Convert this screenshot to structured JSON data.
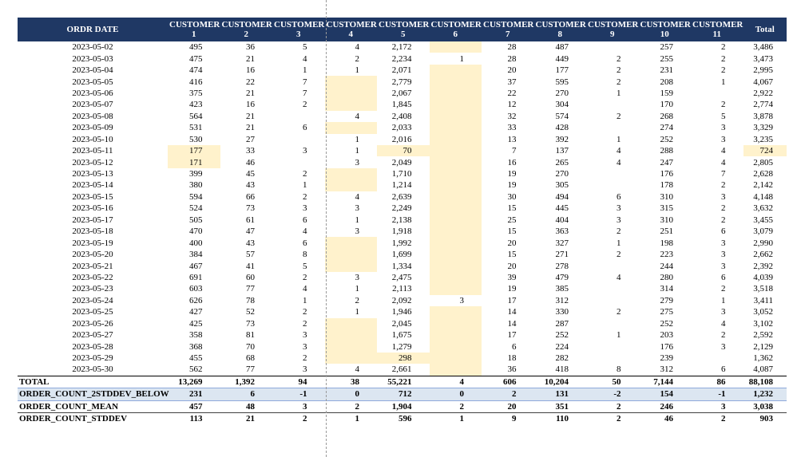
{
  "table": {
    "columns": [
      "ORDR DATE",
      "CUSTOMER 1",
      "CUSTOMER 2",
      "CUSTOMER 3",
      "CUSTOMER 4",
      "CUSTOMER 5",
      "CUSTOMER 6",
      "CUSTOMER 7",
      "CUSTOMER 8",
      "CUSTOMER 9",
      "CUSTOMER 10",
      "CUSTOMER 11",
      "Total"
    ],
    "rows": [
      [
        "2023-05-02",
        "495",
        "36",
        "5",
        "4",
        "2,172",
        null,
        "28",
        "487",
        null,
        "257",
        "2",
        "3,486"
      ],
      [
        "2023-05-03",
        "475",
        "21",
        "4",
        "2",
        "2,234",
        "1",
        "28",
        "449",
        "2",
        "255",
        "2",
        "3,473"
      ],
      [
        "2023-05-04",
        "474",
        "16",
        "1",
        "1",
        "2,071",
        null,
        "20",
        "177",
        "2",
        "231",
        "2",
        "2,995"
      ],
      [
        "2023-05-05",
        "416",
        "22",
        "7",
        null,
        "2,779",
        null,
        "37",
        "595",
        "2",
        "208",
        "1",
        "4,067"
      ],
      [
        "2023-05-06",
        "375",
        "21",
        "7",
        null,
        "2,067",
        null,
        "22",
        "270",
        "1",
        "159",
        null,
        "2,922"
      ],
      [
        "2023-05-07",
        "423",
        "16",
        "2",
        null,
        "1,845",
        null,
        "12",
        "304",
        null,
        "170",
        "2",
        "2,774"
      ],
      [
        "2023-05-08",
        "564",
        "21",
        null,
        "4",
        "2,408",
        null,
        "32",
        "574",
        "2",
        "268",
        "5",
        "3,878"
      ],
      [
        "2023-05-09",
        "531",
        "21",
        "6",
        null,
        "2,033",
        null,
        "33",
        "428",
        null,
        "274",
        "3",
        "3,329"
      ],
      [
        "2023-05-10",
        "530",
        "27",
        null,
        "1",
        "2,016",
        null,
        "13",
        "392",
        "1",
        "252",
        "3",
        "3,235"
      ],
      [
        "2023-05-11",
        "177",
        "33",
        "3",
        "1",
        "70",
        null,
        "7",
        "137",
        "4",
        "288",
        "4",
        "724"
      ],
      [
        "2023-05-12",
        "171",
        "46",
        null,
        "3",
        "2,049",
        null,
        "16",
        "265",
        "4",
        "247",
        "4",
        "2,805"
      ],
      [
        "2023-05-13",
        "399",
        "45",
        "2",
        null,
        "1,710",
        null,
        "19",
        "270",
        null,
        "176",
        "7",
        "2,628"
      ],
      [
        "2023-05-14",
        "380",
        "43",
        "1",
        null,
        "1,214",
        null,
        "19",
        "305",
        null,
        "178",
        "2",
        "2,142"
      ],
      [
        "2023-05-15",
        "594",
        "66",
        "2",
        "4",
        "2,639",
        null,
        "30",
        "494",
        "6",
        "310",
        "3",
        "4,148"
      ],
      [
        "2023-05-16",
        "524",
        "73",
        "3",
        "3",
        "2,249",
        null,
        "15",
        "445",
        "3",
        "315",
        "2",
        "3,632"
      ],
      [
        "2023-05-17",
        "505",
        "61",
        "6",
        "1",
        "2,138",
        null,
        "25",
        "404",
        "3",
        "310",
        "2",
        "3,455"
      ],
      [
        "2023-05-18",
        "470",
        "47",
        "4",
        "3",
        "1,918",
        null,
        "15",
        "363",
        "2",
        "251",
        "6",
        "3,079"
      ],
      [
        "2023-05-19",
        "400",
        "43",
        "6",
        null,
        "1,992",
        null,
        "20",
        "327",
        "1",
        "198",
        "3",
        "2,990"
      ],
      [
        "2023-05-20",
        "384",
        "57",
        "8",
        null,
        "1,699",
        null,
        "15",
        "271",
        "2",
        "223",
        "3",
        "2,662"
      ],
      [
        "2023-05-21",
        "467",
        "41",
        "5",
        null,
        "1,334",
        null,
        "20",
        "278",
        null,
        "244",
        "3",
        "2,392"
      ],
      [
        "2023-05-22",
        "691",
        "60",
        "2",
        "3",
        "2,475",
        null,
        "39",
        "479",
        "4",
        "280",
        "6",
        "4,039"
      ],
      [
        "2023-05-23",
        "603",
        "77",
        "4",
        "1",
        "2,113",
        null,
        "19",
        "385",
        null,
        "314",
        "2",
        "3,518"
      ],
      [
        "2023-05-24",
        "626",
        "78",
        "1",
        "2",
        "2,092",
        "3",
        "17",
        "312",
        null,
        "279",
        "1",
        "3,411"
      ],
      [
        "2023-05-25",
        "427",
        "52",
        "2",
        "1",
        "1,946",
        null,
        "14",
        "330",
        "2",
        "275",
        "3",
        "3,052"
      ],
      [
        "2023-05-26",
        "425",
        "73",
        "2",
        null,
        "2,045",
        null,
        "14",
        "287",
        null,
        "252",
        "4",
        "3,102"
      ],
      [
        "2023-05-27",
        "358",
        "81",
        "3",
        null,
        "1,675",
        null,
        "17",
        "252",
        "1",
        "203",
        "2",
        "2,592"
      ],
      [
        "2023-05-28",
        "368",
        "70",
        "3",
        null,
        "1,279",
        null,
        "6",
        "224",
        null,
        "176",
        "3",
        "2,129"
      ],
      [
        "2023-05-29",
        "455",
        "68",
        "2",
        null,
        "298",
        null,
        "18",
        "282",
        null,
        "239",
        null,
        "1,362"
      ],
      [
        "2023-05-30",
        "562",
        "77",
        "3",
        "4",
        "2,661",
        null,
        "36",
        "418",
        "8",
        "312",
        "6",
        "4,087"
      ]
    ],
    "summary_rows": [
      [
        "TOTAL",
        "13,269",
        "1,392",
        "94",
        "38",
        "55,221",
        "4",
        "606",
        "10,204",
        "50",
        "7,144",
        "86",
        "88,108"
      ],
      [
        "ORDER_COUNT_2STDDEV_BELOW",
        "231",
        "6",
        "-1",
        "0",
        "712",
        "0",
        "2",
        "131",
        "-2",
        "154",
        "-1",
        "1,232"
      ],
      [
        "ORDER_COUNT_MEAN",
        "457",
        "48",
        "3",
        "2",
        "1,904",
        "2",
        "20",
        "351",
        "2",
        "246",
        "3",
        "3,038"
      ],
      [
        "ORDER_COUNT_STDDEV",
        "113",
        "21",
        "2",
        "1",
        "596",
        "1",
        "9",
        "110",
        "2",
        "46",
        "2",
        "903"
      ]
    ]
  }
}
